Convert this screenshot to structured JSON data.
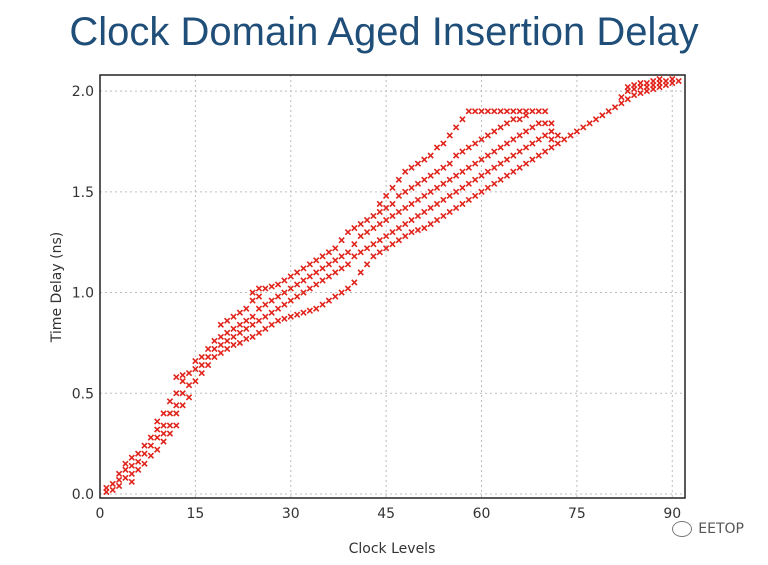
{
  "chart_data": {
    "type": "scatter",
    "title": "Clock Domain Aged Insertion Delay",
    "xlabel": "Clock Levels",
    "ylabel": "Time Delay (ns)",
    "xlim": [
      0,
      92
    ],
    "ylim": [
      -0.02,
      2.08
    ],
    "xticks": [
      "0",
      "15",
      "30",
      "45",
      "60",
      "75",
      "90"
    ],
    "yticks": [
      "0.0",
      "0.5",
      "1.0",
      "1.5",
      "2.0"
    ],
    "grid": true,
    "marker": "x",
    "color": "#e0241b",
    "series": [
      {
        "points": [
          [
            1,
            0.01
          ],
          [
            1,
            0.03
          ],
          [
            2,
            0.05
          ],
          [
            2,
            0.02
          ],
          [
            3,
            0.07
          ],
          [
            3,
            0.1
          ],
          [
            3,
            0.04
          ],
          [
            4,
            0.08
          ],
          [
            4,
            0.12
          ],
          [
            4,
            0.15
          ],
          [
            5,
            0.06
          ],
          [
            5,
            0.1
          ],
          [
            5,
            0.14
          ],
          [
            5,
            0.18
          ],
          [
            6,
            0.12
          ],
          [
            6,
            0.16
          ],
          [
            6,
            0.2
          ],
          [
            7,
            0.15
          ],
          [
            7,
            0.2
          ],
          [
            7,
            0.24
          ],
          [
            8,
            0.19
          ],
          [
            8,
            0.24
          ],
          [
            8,
            0.28
          ],
          [
            9,
            0.22
          ],
          [
            9,
            0.28
          ],
          [
            9,
            0.32
          ],
          [
            9,
            0.36
          ],
          [
            10,
            0.26
          ],
          [
            10,
            0.3
          ],
          [
            10,
            0.34
          ],
          [
            10,
            0.4
          ],
          [
            11,
            0.3
          ],
          [
            11,
            0.34
          ],
          [
            11,
            0.4
          ],
          [
            11,
            0.46
          ],
          [
            12,
            0.34
          ],
          [
            12,
            0.4
          ],
          [
            12,
            0.44
          ],
          [
            12,
            0.5
          ],
          [
            12,
            0.58
          ],
          [
            13,
            0.44
          ],
          [
            13,
            0.5
          ],
          [
            13,
            0.56
          ],
          [
            13,
            0.59
          ],
          [
            14,
            0.48
          ],
          [
            14,
            0.54
          ],
          [
            14,
            0.6
          ],
          [
            15,
            0.56
          ],
          [
            15,
            0.62
          ],
          [
            15,
            0.66
          ],
          [
            16,
            0.6
          ],
          [
            16,
            0.64
          ],
          [
            16,
            0.68
          ],
          [
            17,
            0.64
          ],
          [
            17,
            0.68
          ],
          [
            17,
            0.72
          ],
          [
            18,
            0.68
          ],
          [
            18,
            0.72
          ],
          [
            18,
            0.76
          ],
          [
            19,
            0.7
          ],
          [
            19,
            0.74
          ],
          [
            19,
            0.78
          ],
          [
            19,
            0.84
          ],
          [
            20,
            0.72
          ],
          [
            20,
            0.76
          ],
          [
            20,
            0.8
          ],
          [
            20,
            0.86
          ],
          [
            21,
            0.74
          ],
          [
            21,
            0.78
          ],
          [
            21,
            0.82
          ],
          [
            21,
            0.88
          ],
          [
            22,
            0.75
          ],
          [
            22,
            0.8
          ],
          [
            22,
            0.84
          ],
          [
            22,
            0.9
          ],
          [
            23,
            0.77
          ],
          [
            23,
            0.82
          ],
          [
            23,
            0.86
          ],
          [
            23,
            0.92
          ],
          [
            24,
            0.78
          ],
          [
            24,
            0.84
          ],
          [
            24,
            0.88
          ],
          [
            24,
            0.96
          ],
          [
            24,
            1.0
          ],
          [
            25,
            0.8
          ],
          [
            25,
            0.86
          ],
          [
            25,
            0.92
          ],
          [
            25,
            0.98
          ],
          [
            25,
            1.02
          ],
          [
            26,
            0.82
          ],
          [
            26,
            0.88
          ],
          [
            26,
            0.94
          ],
          [
            26,
            1.02
          ],
          [
            27,
            0.84
          ],
          [
            27,
            0.9
          ],
          [
            27,
            0.96
          ],
          [
            27,
            1.03
          ],
          [
            28,
            0.86
          ],
          [
            28,
            0.92
          ],
          [
            28,
            0.98
          ],
          [
            28,
            1.04
          ],
          [
            29,
            0.87
          ],
          [
            29,
            0.94
          ],
          [
            29,
            1.0
          ],
          [
            29,
            1.06
          ],
          [
            30,
            0.88
          ],
          [
            30,
            0.96
          ],
          [
            30,
            1.02
          ],
          [
            30,
            1.08
          ],
          [
            31,
            0.89
          ],
          [
            31,
            0.98
          ],
          [
            31,
            1.04
          ],
          [
            31,
            1.1
          ],
          [
            32,
            0.9
          ],
          [
            32,
            1.0
          ],
          [
            32,
            1.06
          ],
          [
            32,
            1.12
          ],
          [
            33,
            0.91
          ],
          [
            33,
            1.02
          ],
          [
            33,
            1.08
          ],
          [
            33,
            1.14
          ],
          [
            34,
            0.92
          ],
          [
            34,
            1.04
          ],
          [
            34,
            1.1
          ],
          [
            34,
            1.16
          ],
          [
            35,
            0.94
          ],
          [
            35,
            1.06
          ],
          [
            35,
            1.12
          ],
          [
            35,
            1.18
          ],
          [
            36,
            0.96
          ],
          [
            36,
            1.08
          ],
          [
            36,
            1.14
          ],
          [
            36,
            1.2
          ],
          [
            37,
            0.98
          ],
          [
            37,
            1.1
          ],
          [
            37,
            1.16
          ],
          [
            37,
            1.22
          ],
          [
            38,
            1.0
          ],
          [
            38,
            1.12
          ],
          [
            38,
            1.18
          ],
          [
            38,
            1.26
          ],
          [
            39,
            1.02
          ],
          [
            39,
            1.14
          ],
          [
            39,
            1.2
          ],
          [
            39,
            1.3
          ],
          [
            40,
            1.05
          ],
          [
            40,
            1.18
          ],
          [
            40,
            1.24
          ],
          [
            40,
            1.32
          ],
          [
            41,
            1.1
          ],
          [
            41,
            1.2
          ],
          [
            41,
            1.28
          ],
          [
            41,
            1.34
          ],
          [
            42,
            1.14
          ],
          [
            42,
            1.22
          ],
          [
            42,
            1.3
          ],
          [
            42,
            1.36
          ],
          [
            43,
            1.18
          ],
          [
            43,
            1.24
          ],
          [
            43,
            1.32
          ],
          [
            43,
            1.38
          ],
          [
            44,
            1.2
          ],
          [
            44,
            1.26
          ],
          [
            44,
            1.34
          ],
          [
            44,
            1.4
          ],
          [
            44,
            1.44
          ],
          [
            45,
            1.22
          ],
          [
            45,
            1.28
          ],
          [
            45,
            1.36
          ],
          [
            45,
            1.42
          ],
          [
            45,
            1.48
          ],
          [
            46,
            1.24
          ],
          [
            46,
            1.3
          ],
          [
            46,
            1.38
          ],
          [
            46,
            1.44
          ],
          [
            46,
            1.52
          ],
          [
            47,
            1.26
          ],
          [
            47,
            1.32
          ],
          [
            47,
            1.4
          ],
          [
            47,
            1.48
          ],
          [
            47,
            1.56
          ],
          [
            48,
            1.28
          ],
          [
            48,
            1.34
          ],
          [
            48,
            1.42
          ],
          [
            48,
            1.5
          ],
          [
            48,
            1.6
          ],
          [
            49,
            1.3
          ],
          [
            49,
            1.36
          ],
          [
            49,
            1.44
          ],
          [
            49,
            1.52
          ],
          [
            49,
            1.62
          ],
          [
            50,
            1.31
          ],
          [
            50,
            1.38
          ],
          [
            50,
            1.46
          ],
          [
            50,
            1.54
          ],
          [
            50,
            1.64
          ],
          [
            51,
            1.32
          ],
          [
            51,
            1.4
          ],
          [
            51,
            1.48
          ],
          [
            51,
            1.56
          ],
          [
            51,
            1.66
          ],
          [
            52,
            1.34
          ],
          [
            52,
            1.42
          ],
          [
            52,
            1.5
          ],
          [
            52,
            1.58
          ],
          [
            52,
            1.68
          ],
          [
            53,
            1.36
          ],
          [
            53,
            1.44
          ],
          [
            53,
            1.52
          ],
          [
            53,
            1.6
          ],
          [
            53,
            1.72
          ],
          [
            54,
            1.38
          ],
          [
            54,
            1.46
          ],
          [
            54,
            1.54
          ],
          [
            54,
            1.62
          ],
          [
            54,
            1.74
          ],
          [
            55,
            1.4
          ],
          [
            55,
            1.48
          ],
          [
            55,
            1.56
          ],
          [
            55,
            1.64
          ],
          [
            55,
            1.78
          ],
          [
            56,
            1.42
          ],
          [
            56,
            1.5
          ],
          [
            56,
            1.58
          ],
          [
            56,
            1.68
          ],
          [
            56,
            1.82
          ],
          [
            57,
            1.44
          ],
          [
            57,
            1.52
          ],
          [
            57,
            1.6
          ],
          [
            57,
            1.7
          ],
          [
            57,
            1.86
          ],
          [
            58,
            1.46
          ],
          [
            58,
            1.54
          ],
          [
            58,
            1.62
          ],
          [
            58,
            1.72
          ],
          [
            58,
            1.9
          ],
          [
            59,
            1.48
          ],
          [
            59,
            1.56
          ],
          [
            59,
            1.64
          ],
          [
            59,
            1.74
          ],
          [
            59,
            1.9
          ],
          [
            60,
            1.5
          ],
          [
            60,
            1.58
          ],
          [
            60,
            1.66
          ],
          [
            60,
            1.76
          ],
          [
            60,
            1.9
          ],
          [
            61,
            1.52
          ],
          [
            61,
            1.6
          ],
          [
            61,
            1.68
          ],
          [
            61,
            1.78
          ],
          [
            61,
            1.9
          ],
          [
            62,
            1.54
          ],
          [
            62,
            1.62
          ],
          [
            62,
            1.7
          ],
          [
            62,
            1.8
          ],
          [
            62,
            1.9
          ],
          [
            63,
            1.56
          ],
          [
            63,
            1.64
          ],
          [
            63,
            1.72
          ],
          [
            63,
            1.82
          ],
          [
            63,
            1.9
          ],
          [
            64,
            1.58
          ],
          [
            64,
            1.66
          ],
          [
            64,
            1.74
          ],
          [
            64,
            1.84
          ],
          [
            64,
            1.9
          ],
          [
            65,
            1.6
          ],
          [
            65,
            1.68
          ],
          [
            65,
            1.76
          ],
          [
            65,
            1.86
          ],
          [
            65,
            1.9
          ],
          [
            66,
            1.62
          ],
          [
            66,
            1.7
          ],
          [
            66,
            1.78
          ],
          [
            66,
            1.86
          ],
          [
            66,
            1.9
          ],
          [
            67,
            1.64
          ],
          [
            67,
            1.72
          ],
          [
            67,
            1.8
          ],
          [
            67,
            1.88
          ],
          [
            67,
            1.9
          ],
          [
            68,
            1.66
          ],
          [
            68,
            1.74
          ],
          [
            68,
            1.82
          ],
          [
            68,
            1.9
          ],
          [
            69,
            1.68
          ],
          [
            69,
            1.76
          ],
          [
            69,
            1.84
          ],
          [
            69,
            1.9
          ],
          [
            70,
            1.7
          ],
          [
            70,
            1.78
          ],
          [
            70,
            1.84
          ],
          [
            70,
            1.9
          ],
          [
            71,
            1.72
          ],
          [
            71,
            1.76
          ],
          [
            71,
            1.8
          ],
          [
            71,
            1.84
          ],
          [
            72,
            1.74
          ],
          [
            72,
            1.78
          ],
          [
            73,
            1.76
          ],
          [
            74,
            1.78
          ],
          [
            75,
            1.8
          ],
          [
            76,
            1.82
          ],
          [
            77,
            1.84
          ],
          [
            78,
            1.86
          ],
          [
            79,
            1.88
          ],
          [
            80,
            1.9
          ],
          [
            81,
            1.92
          ],
          [
            82,
            1.94
          ],
          [
            82,
            1.97
          ],
          [
            83,
            1.96
          ],
          [
            83,
            2.0
          ],
          [
            83,
            2.02
          ],
          [
            84,
            1.98
          ],
          [
            84,
            2.01
          ],
          [
            84,
            2.03
          ],
          [
            85,
            1.99
          ],
          [
            85,
            2.02
          ],
          [
            85,
            2.04
          ],
          [
            86,
            2.0
          ],
          [
            86,
            2.02
          ],
          [
            86,
            2.04
          ],
          [
            87,
            2.01
          ],
          [
            87,
            2.03
          ],
          [
            87,
            2.05
          ],
          [
            88,
            2.02
          ],
          [
            88,
            2.04
          ],
          [
            88,
            2.06
          ],
          [
            89,
            2.03
          ],
          [
            89,
            2.05
          ],
          [
            90,
            2.04
          ],
          [
            90,
            2.06
          ],
          [
            91,
            2.05
          ]
        ]
      }
    ]
  },
  "watermark": {
    "text": "EETOP",
    "icon": "wechat-icon"
  }
}
